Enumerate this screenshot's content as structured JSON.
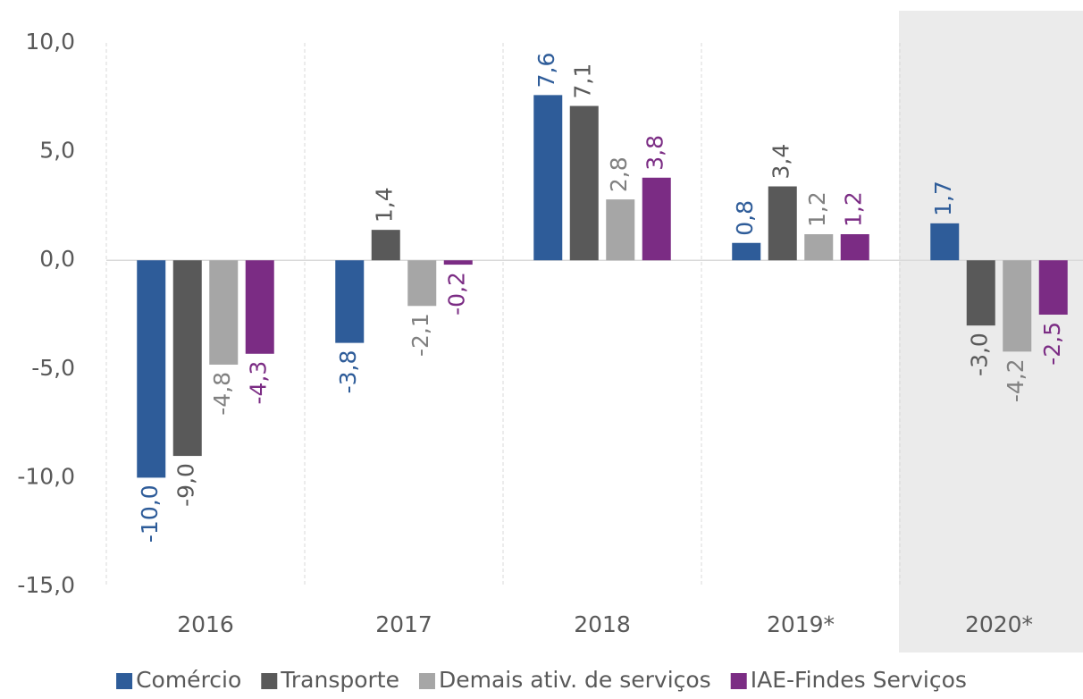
{
  "chart_data": {
    "type": "bar",
    "categories": [
      "2016",
      "2017",
      "2018",
      "2019*",
      "2020*"
    ],
    "series": [
      {
        "name": "Comércio",
        "color": "#2e5c99",
        "values": [
          -10.0,
          -3.8,
          7.6,
          0.8,
          1.7
        ],
        "value_labels": [
          "-10,0",
          "-3,8",
          "7,6",
          "0,8",
          "1,7"
        ]
      },
      {
        "name": "Transporte",
        "color": "#595959",
        "values": [
          -9.0,
          1.4,
          7.1,
          3.4,
          -3.0
        ],
        "value_labels": [
          "-9,0",
          "1,4",
          "7,1",
          "3,4",
          "-3,0"
        ]
      },
      {
        "name": "Demais ativ. de serviços",
        "color": "#a6a6a6",
        "values": [
          -4.8,
          -2.1,
          2.8,
          1.2,
          -4.2
        ],
        "value_labels": [
          "-4,8",
          "-2,1",
          "2,8",
          "1,2",
          "-4,2"
        ]
      },
      {
        "name": "IAE-Findes Serviços",
        "color": "#7b2c84",
        "values": [
          -4.3,
          -0.2,
          3.8,
          1.2,
          -2.5
        ],
        "value_labels": [
          "-4,3",
          "-0,2",
          "3,8",
          "1,2",
          "-2,5"
        ]
      }
    ],
    "ylim": [
      -15,
      10
    ],
    "yticks": [
      {
        "value": -15,
        "label": "-15,0"
      },
      {
        "value": -10,
        "label": "-10,0"
      },
      {
        "value": -5,
        "label": "-5,0"
      },
      {
        "value": 0,
        "label": "0,0"
      },
      {
        "value": 5,
        "label": "5,0"
      },
      {
        "value": 10,
        "label": "10,0"
      }
    ],
    "highlight_index": 4,
    "highlight_color": "#ebebeb",
    "legend": "bottom"
  }
}
